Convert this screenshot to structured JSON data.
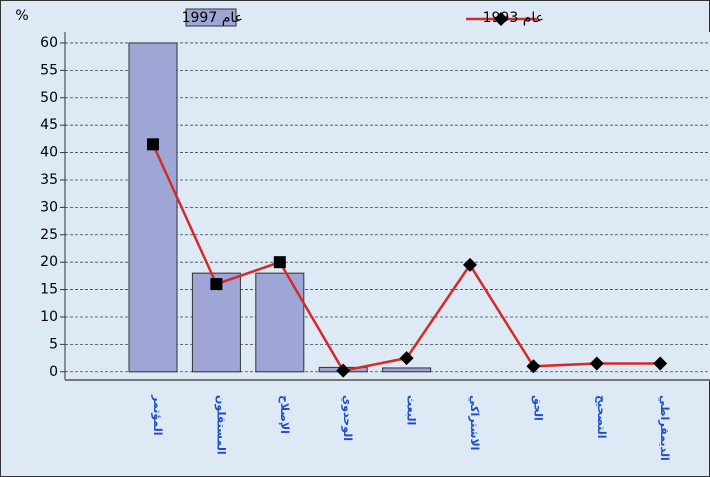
{
  "chart_data": {
    "type": "bar_line",
    "y_label": "%",
    "categories": [
      "المؤتمر",
      "المستقلون",
      "الإصلاح",
      "الوحدوي",
      "البعث",
      "الاشتراكي",
      "الحق",
      "التصحيح",
      "الديمقراطي"
    ],
    "series": [
      {
        "name": "عام 1997",
        "type": "bar",
        "color": "#9ea6d6",
        "values": [
          60,
          18,
          18,
          0.8,
          0.7,
          null,
          null,
          null,
          null
        ]
      },
      {
        "name": "عام 1993",
        "type": "line",
        "color": "#d42a2a",
        "values": [
          41.5,
          16,
          20,
          0.2,
          2.5,
          19.5,
          1,
          1.5,
          1.5
        ]
      }
    ],
    "ylim": [
      -1.5,
      62
    ],
    "yticks": [
      0,
      5,
      10,
      15,
      20,
      25,
      30,
      35,
      40,
      45,
      50,
      55,
      60
    ],
    "grid": true
  }
}
